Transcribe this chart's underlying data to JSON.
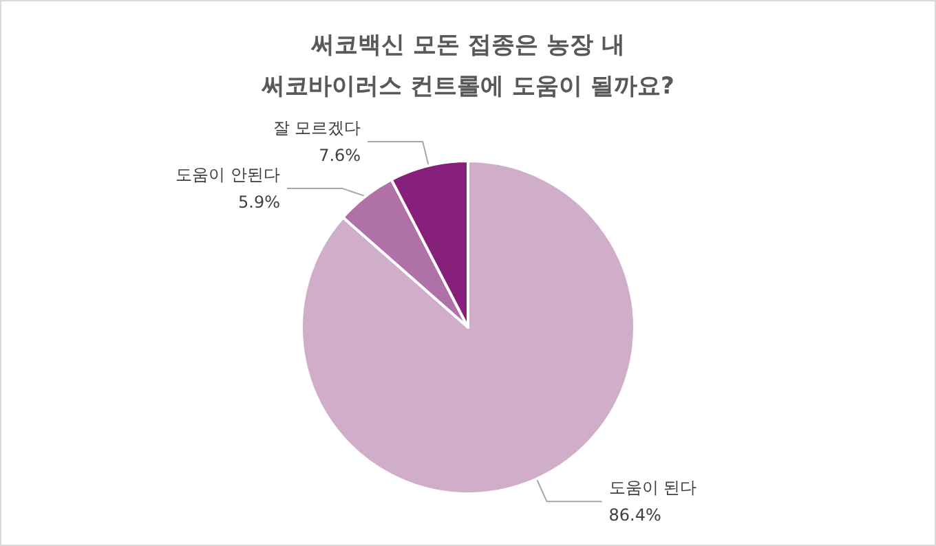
{
  "chart_data": {
    "type": "pie",
    "title": "써코백신 모돈 접종은 농장 내\n써코바이러스 컨트롤에 도움이 될까요?",
    "categories": [
      "도움이 된다",
      "도움이 안된다",
      "잘 모르겠다"
    ],
    "values": [
      86.4,
      5.9,
      7.6
    ],
    "colors": [
      "#d0aec9",
      "#b070a8",
      "#87207a"
    ],
    "value_labels": [
      "86.4%",
      "5.9%",
      "7.6%"
    ],
    "legend": false
  }
}
